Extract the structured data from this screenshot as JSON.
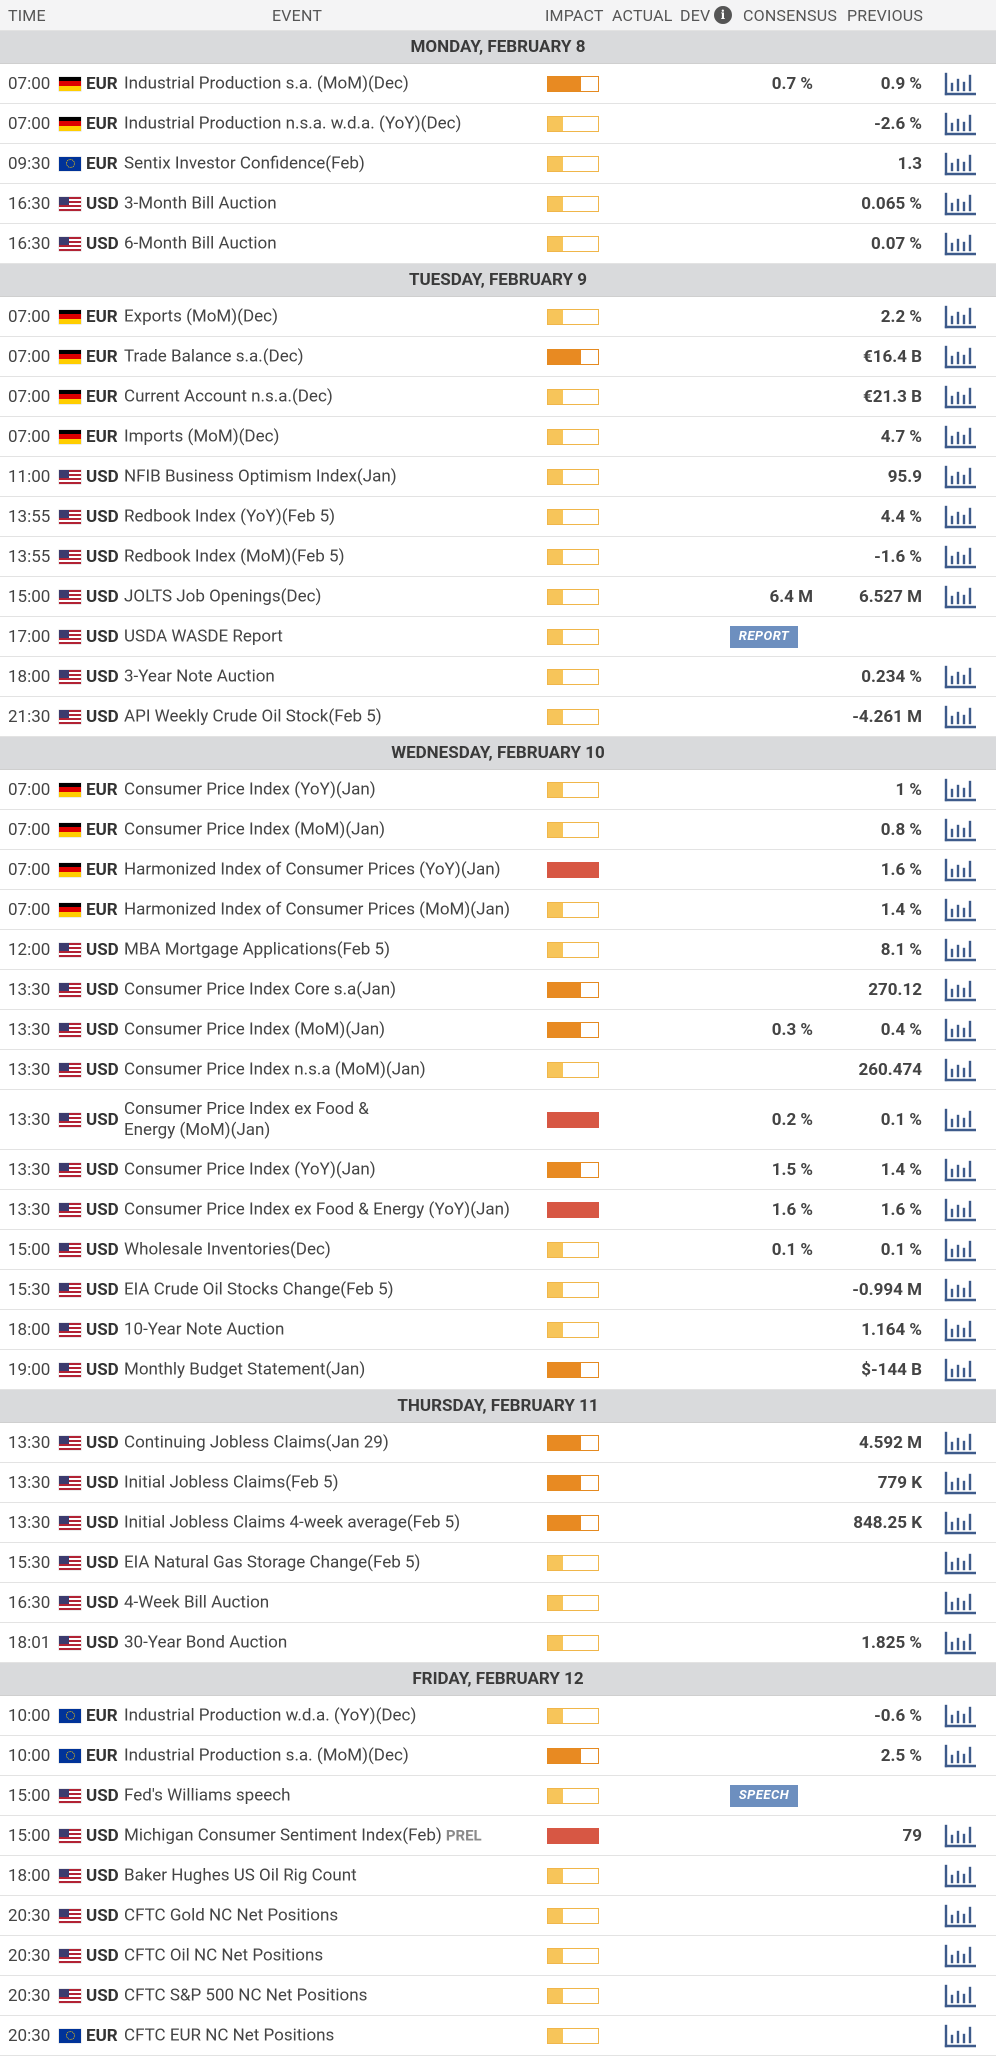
{
  "header": {
    "time": "TIME",
    "event": "EVENT",
    "impact": "IMPACT",
    "actual": "ACTUAL",
    "dev": "DEV",
    "consensus": "CONSENSUS",
    "previous": "PREVIOUS",
    "info_icon": "info-icon"
  },
  "colors": {
    "low": "#f7c55a",
    "medium": "#e88a22",
    "high": "#d75744",
    "tag": "#6d8fbf",
    "chart_icon": "#3d5a8a"
  },
  "days": [
    {
      "label": "MONDAY, FEBRUARY 8",
      "events": [
        {
          "time": "07:00",
          "flag": "de",
          "cur": "EUR",
          "event": "Industrial Production s.a. (MoM)(Dec)",
          "impact": "med",
          "consensus": "0.7 %",
          "previous": "0.9 %"
        },
        {
          "time": "07:00",
          "flag": "de",
          "cur": "EUR",
          "event": "Industrial Production n.s.a. w.d.a. (YoY)(Dec)",
          "impact": "low",
          "consensus": "",
          "previous": "-2.6 %"
        },
        {
          "time": "09:30",
          "flag": "eu",
          "cur": "EUR",
          "event": "Sentix Investor Confidence(Feb)",
          "impact": "low",
          "consensus": "",
          "previous": "1.3"
        },
        {
          "time": "16:30",
          "flag": "us",
          "cur": "USD",
          "event": "3-Month Bill Auction",
          "impact": "low",
          "consensus": "",
          "previous": "0.065 %"
        },
        {
          "time": "16:30",
          "flag": "us",
          "cur": "USD",
          "event": "6-Month Bill Auction",
          "impact": "low",
          "consensus": "",
          "previous": "0.07 %"
        }
      ]
    },
    {
      "label": "TUESDAY, FEBRUARY 9",
      "events": [
        {
          "time": "07:00",
          "flag": "de",
          "cur": "EUR",
          "event": "Exports (MoM)(Dec)",
          "impact": "low",
          "consensus": "",
          "previous": "2.2 %"
        },
        {
          "time": "07:00",
          "flag": "de",
          "cur": "EUR",
          "event": "Trade Balance s.a.(Dec)",
          "impact": "med",
          "consensus": "",
          "previous": "€16.4 B"
        },
        {
          "time": "07:00",
          "flag": "de",
          "cur": "EUR",
          "event": "Current Account n.s.a.(Dec)",
          "impact": "low",
          "consensus": "",
          "previous": "€21.3 B"
        },
        {
          "time": "07:00",
          "flag": "de",
          "cur": "EUR",
          "event": "Imports (MoM)(Dec)",
          "impact": "low",
          "consensus": "",
          "previous": "4.7 %"
        },
        {
          "time": "11:00",
          "flag": "us",
          "cur": "USD",
          "event": "NFIB Business Optimism Index(Jan)",
          "impact": "low",
          "consensus": "",
          "previous": "95.9"
        },
        {
          "time": "13:55",
          "flag": "us",
          "cur": "USD",
          "event": "Redbook Index (YoY)(Feb 5)",
          "impact": "low",
          "consensus": "",
          "previous": "4.4 %"
        },
        {
          "time": "13:55",
          "flag": "us",
          "cur": "USD",
          "event": "Redbook Index (MoM)(Feb 5)",
          "impact": "low",
          "consensus": "",
          "previous": "-1.6 %"
        },
        {
          "time": "15:00",
          "flag": "us",
          "cur": "USD",
          "event": "JOLTS Job Openings(Dec)",
          "impact": "low",
          "consensus": "6.4 M",
          "previous": "6.527 M"
        },
        {
          "time": "17:00",
          "flag": "us",
          "cur": "USD",
          "event": "USDA WASDE Report",
          "impact": "low",
          "consensus": "",
          "previous": "",
          "tag": "REPORT",
          "nochart": true
        },
        {
          "time": "18:00",
          "flag": "us",
          "cur": "USD",
          "event": "3-Year Note Auction",
          "impact": "low",
          "consensus": "",
          "previous": "0.234 %"
        },
        {
          "time": "21:30",
          "flag": "us",
          "cur": "USD",
          "event": "API Weekly Crude Oil Stock(Feb 5)",
          "impact": "low",
          "consensus": "",
          "previous": "-4.261 M"
        }
      ]
    },
    {
      "label": "WEDNESDAY, FEBRUARY 10",
      "events": [
        {
          "time": "07:00",
          "flag": "de",
          "cur": "EUR",
          "event": "Consumer Price Index (YoY)(Jan)",
          "impact": "low",
          "consensus": "",
          "previous": "1 %"
        },
        {
          "time": "07:00",
          "flag": "de",
          "cur": "EUR",
          "event": "Consumer Price Index (MoM)(Jan)",
          "impact": "low",
          "consensus": "",
          "previous": "0.8 %"
        },
        {
          "time": "07:00",
          "flag": "de",
          "cur": "EUR",
          "event": "Harmonized Index of Consumer Prices (YoY)(Jan)",
          "impact": "high",
          "consensus": "",
          "previous": "1.6 %"
        },
        {
          "time": "07:00",
          "flag": "de",
          "cur": "EUR",
          "event": "Harmonized Index of Consumer Prices (MoM)(Jan)",
          "impact": "low",
          "consensus": "",
          "previous": "1.4 %"
        },
        {
          "time": "12:00",
          "flag": "us",
          "cur": "USD",
          "event": "MBA Mortgage Applications(Feb 5)",
          "impact": "low",
          "consensus": "",
          "previous": "8.1 %"
        },
        {
          "time": "13:30",
          "flag": "us",
          "cur": "USD",
          "event": "Consumer Price Index Core s.a(Jan)",
          "impact": "med",
          "consensus": "",
          "previous": "270.12"
        },
        {
          "time": "13:30",
          "flag": "us",
          "cur": "USD",
          "event": "Consumer Price Index (MoM)(Jan)",
          "impact": "med",
          "consensus": "0.3 %",
          "previous": "0.4 %"
        },
        {
          "time": "13:30",
          "flag": "us",
          "cur": "USD",
          "event": "Consumer Price Index n.s.a (MoM)(Jan)",
          "impact": "low",
          "consensus": "",
          "previous": "260.474"
        },
        {
          "time": "13:30",
          "flag": "us",
          "cur": "USD",
          "event": "Consumer Price Index ex Food & Energy (MoM)(Jan)",
          "impact": "high",
          "consensus": "0.2 %",
          "previous": "0.1 %",
          "tall": true
        },
        {
          "time": "13:30",
          "flag": "us",
          "cur": "USD",
          "event": "Consumer Price Index (YoY)(Jan)",
          "impact": "med",
          "consensus": "1.5 %",
          "previous": "1.4 %"
        },
        {
          "time": "13:30",
          "flag": "us",
          "cur": "USD",
          "event": "Consumer Price Index ex Food & Energy (YoY)(Jan)",
          "impact": "high",
          "consensus": "1.6 %",
          "previous": "1.6 %"
        },
        {
          "time": "15:00",
          "flag": "us",
          "cur": "USD",
          "event": "Wholesale Inventories(Dec)",
          "impact": "low",
          "consensus": "0.1 %",
          "previous": "0.1 %"
        },
        {
          "time": "15:30",
          "flag": "us",
          "cur": "USD",
          "event": "EIA Crude Oil Stocks Change(Feb 5)",
          "impact": "low",
          "consensus": "",
          "previous": "-0.994 M"
        },
        {
          "time": "18:00",
          "flag": "us",
          "cur": "USD",
          "event": "10-Year Note Auction",
          "impact": "low",
          "consensus": "",
          "previous": "1.164 %"
        },
        {
          "time": "19:00",
          "flag": "us",
          "cur": "USD",
          "event": "Monthly Budget Statement(Jan)",
          "impact": "med",
          "consensus": "",
          "previous": "$-144 B"
        }
      ]
    },
    {
      "label": "THURSDAY, FEBRUARY 11",
      "events": [
        {
          "time": "13:30",
          "flag": "us",
          "cur": "USD",
          "event": "Continuing Jobless Claims(Jan 29)",
          "impact": "med",
          "consensus": "",
          "previous": "4.592 M"
        },
        {
          "time": "13:30",
          "flag": "us",
          "cur": "USD",
          "event": "Initial Jobless Claims(Feb 5)",
          "impact": "med",
          "consensus": "",
          "previous": "779 K"
        },
        {
          "time": "13:30",
          "flag": "us",
          "cur": "USD",
          "event": "Initial Jobless Claims 4-week average(Feb 5)",
          "impact": "med",
          "consensus": "",
          "previous": "848.25 K"
        },
        {
          "time": "15:30",
          "flag": "us",
          "cur": "USD",
          "event": "EIA Natural Gas Storage Change(Feb 5)",
          "impact": "low",
          "consensus": "",
          "previous": ""
        },
        {
          "time": "16:30",
          "flag": "us",
          "cur": "USD",
          "event": "4-Week Bill Auction",
          "impact": "low",
          "consensus": "",
          "previous": ""
        },
        {
          "time": "18:01",
          "flag": "us",
          "cur": "USD",
          "event": "30-Year Bond Auction",
          "impact": "low",
          "consensus": "",
          "previous": "1.825 %"
        }
      ]
    },
    {
      "label": "FRIDAY, FEBRUARY 12",
      "events": [
        {
          "time": "10:00",
          "flag": "eu",
          "cur": "EUR",
          "event": "Industrial Production w.d.a. (YoY)(Dec)",
          "impact": "low",
          "consensus": "",
          "previous": "-0.6 %"
        },
        {
          "time": "10:00",
          "flag": "eu",
          "cur": "EUR",
          "event": "Industrial Production s.a. (MoM)(Dec)",
          "impact": "med",
          "consensus": "",
          "previous": "2.5 %"
        },
        {
          "time": "15:00",
          "flag": "us",
          "cur": "USD",
          "event": "Fed's Williams speech",
          "impact": "low",
          "consensus": "",
          "previous": "",
          "tag": "SPEECH",
          "nochart": true
        },
        {
          "time": "15:00",
          "flag": "us",
          "cur": "USD",
          "event": "Michigan Consumer Sentiment Index(Feb)",
          "suffix": "PREL",
          "impact": "high",
          "consensus": "",
          "previous": "79"
        },
        {
          "time": "18:00",
          "flag": "us",
          "cur": "USD",
          "event": "Baker Hughes US Oil Rig Count",
          "impact": "low",
          "consensus": "",
          "previous": ""
        },
        {
          "time": "20:30",
          "flag": "us",
          "cur": "USD",
          "event": "CFTC Gold NC Net Positions",
          "impact": "low",
          "consensus": "",
          "previous": ""
        },
        {
          "time": "20:30",
          "flag": "us",
          "cur": "USD",
          "event": "CFTC Oil NC Net Positions",
          "impact": "low",
          "consensus": "",
          "previous": ""
        },
        {
          "time": "20:30",
          "flag": "us",
          "cur": "USD",
          "event": "CFTC S&P 500 NC Net Positions",
          "impact": "low",
          "consensus": "",
          "previous": ""
        },
        {
          "time": "20:30",
          "flag": "eu",
          "cur": "EUR",
          "event": "CFTC EUR NC Net Positions",
          "impact": "low",
          "consensus": "",
          "previous": ""
        }
      ]
    }
  ]
}
